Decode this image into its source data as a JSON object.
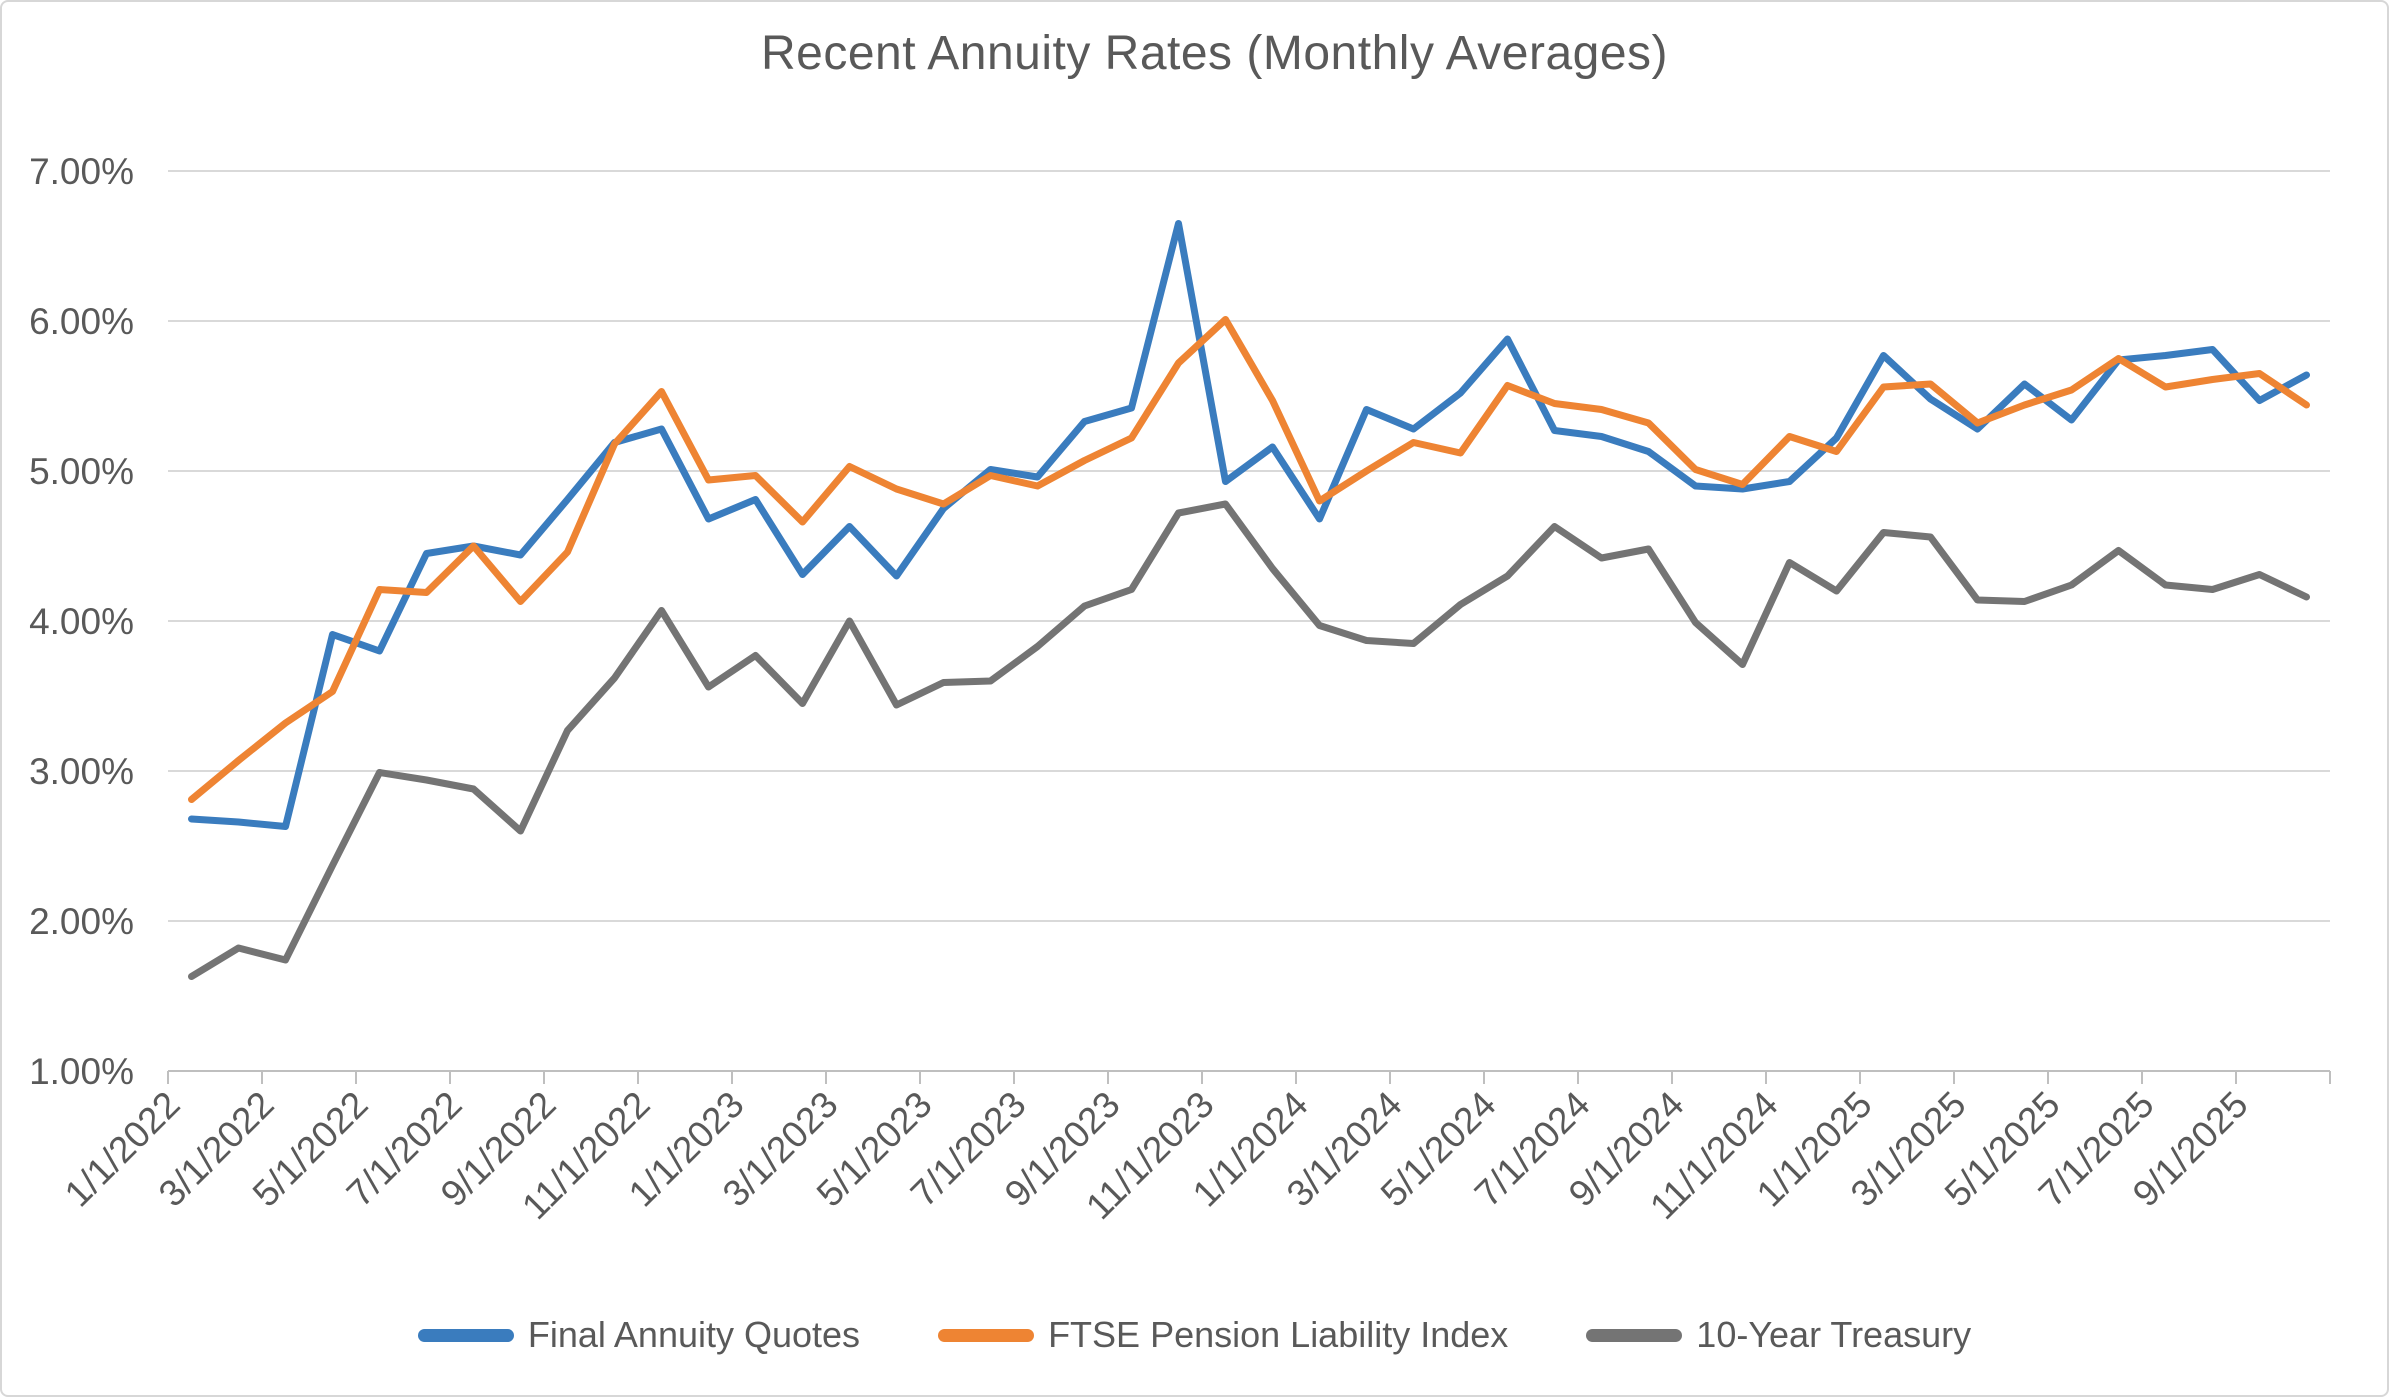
{
  "chart_data": {
    "type": "line",
    "title": "Recent Annuity Rates (Monthly Averages)",
    "grid": true,
    "legend_position": "bottom",
    "categories": [
      "1/1/2022",
      "2/1/2022",
      "3/1/2022",
      "4/1/2022",
      "5/1/2022",
      "6/1/2022",
      "7/1/2022",
      "8/1/2022",
      "9/1/2022",
      "10/1/2022",
      "11/1/2022",
      "12/1/2022",
      "1/1/2023",
      "2/1/2023",
      "3/1/2023",
      "4/1/2023",
      "5/1/2023",
      "6/1/2023",
      "7/1/2023",
      "8/1/2023",
      "9/1/2023",
      "10/1/2023",
      "11/1/2023",
      "12/1/2023",
      "1/1/2024",
      "2/1/2024",
      "3/1/2024",
      "4/1/2024",
      "5/1/2024",
      "6/1/2024",
      "7/1/2024",
      "8/1/2024",
      "9/1/2024",
      "10/1/2024",
      "11/1/2024",
      "12/1/2024",
      "1/1/2025",
      "2/1/2025",
      "3/1/2025",
      "4/1/2025",
      "5/1/2025",
      "6/1/2025",
      "7/1/2025",
      "8/1/2025",
      "9/1/2025",
      "10/1/2025"
    ],
    "series": [
      {
        "name": "Final Annuity Quotes",
        "color": "#3A7CBE",
        "values": [
          2.68,
          2.66,
          2.63,
          3.91,
          3.8,
          4.45,
          4.5,
          4.44,
          4.81,
          5.19,
          5.28,
          4.68,
          4.81,
          4.31,
          4.63,
          4.3,
          4.75,
          5.01,
          4.96,
          5.33,
          5.42,
          6.65,
          4.93,
          5.16,
          4.68,
          5.41,
          5.28,
          5.52,
          5.88,
          5.27,
          5.23,
          5.13,
          4.9,
          4.88,
          4.93,
          5.22,
          5.77,
          5.48,
          5.28,
          5.58,
          5.34,
          5.74,
          5.77,
          5.81,
          5.47,
          5.64
        ]
      },
      {
        "name": "FTSE Pension Liability Index",
        "color": "#EE8433",
        "values": [
          2.81,
          3.07,
          3.32,
          3.53,
          4.21,
          4.19,
          4.5,
          4.13,
          4.46,
          5.18,
          5.53,
          4.94,
          4.97,
          4.66,
          5.03,
          4.88,
          4.78,
          4.97,
          4.9,
          5.07,
          5.22,
          5.72,
          6.01,
          5.47,
          4.8,
          5.0,
          5.19,
          5.12,
          5.57,
          5.45,
          5.41,
          5.32,
          5.01,
          4.91,
          5.23,
          5.13,
          5.56,
          5.58,
          5.32,
          5.44,
          5.54,
          5.75,
          5.56,
          5.61,
          5.65,
          5.44
        ]
      },
      {
        "name": "10-Year Treasury",
        "color": "#747474",
        "values": [
          1.63,
          1.82,
          1.74,
          2.37,
          2.99,
          2.94,
          2.88,
          2.6,
          3.27,
          3.62,
          4.07,
          3.56,
          3.77,
          3.45,
          4.0,
          3.44,
          3.59,
          3.6,
          3.83,
          4.1,
          4.21,
          4.72,
          4.78,
          4.35,
          3.97,
          3.87,
          3.85,
          4.11,
          4.3,
          4.63,
          4.42,
          4.48,
          3.99,
          3.71,
          4.39,
          4.2,
          4.59,
          4.56,
          4.14,
          4.13,
          4.24,
          4.47,
          4.24,
          4.21,
          4.31,
          4.16
        ]
      }
    ],
    "y_axis": {
      "min": 1,
      "max": 7,
      "tick_labels": [
        "7.00%",
        "6.00%",
        "5.00%",
        "4.00%",
        "3.00%",
        "2.00%",
        "1.00%"
      ]
    },
    "x_axis": {
      "label_every": 2,
      "tick_labels": [
        "1/1/2022",
        "3/1/2022",
        "5/1/2022",
        "7/1/2022",
        "9/1/2022",
        "11/1/2022",
        "1/1/2023",
        "3/1/2023",
        "5/1/2023",
        "7/1/2023",
        "9/1/2023",
        "11/1/2023",
        "1/1/2024",
        "3/1/2024",
        "5/1/2024",
        "7/1/2024",
        "9/1/2024",
        "11/1/2024",
        "1/1/2025",
        "3/1/2025",
        "5/1/2025",
        "7/1/2025",
        "9/1/2025"
      ]
    }
  },
  "styles": {
    "text_color": "#595959",
    "gridline_color": "#D9D9D9",
    "axis_color": "#BFBFBF",
    "border_color": "#D7D7D7",
    "background": "#FFFFFF"
  }
}
